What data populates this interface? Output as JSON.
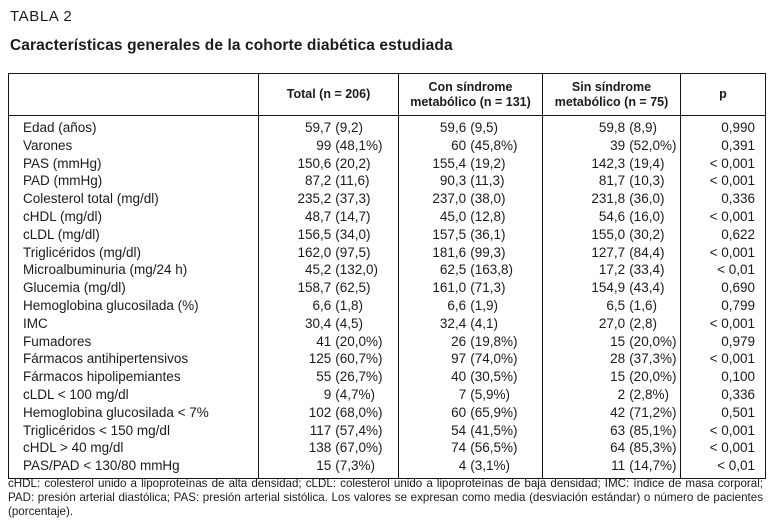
{
  "colors": {
    "text": "#1b1b1b",
    "border": "#141414",
    "background": "#ffffff"
  },
  "header": {
    "table_label": "TABLA 2",
    "title": "Características generales de la cohorte diabética estudiada"
  },
  "table": {
    "column_headers": [
      "",
      "Total (n = 206)",
      "Con síndrome\nmetabólico (n = 131)",
      "Sin síndrome\nmetabólico (n = 75)",
      "p"
    ],
    "rows": [
      {
        "label": "Edad (años)",
        "total": "59,7 (9,2)",
        "with_ms": "59,6 (9,5)",
        "without_ms": "59,8 (8,9)",
        "p": "0,990"
      },
      {
        "label": "Varones",
        "total": "99 (48,1%)",
        "with_ms": "60 (45,8%)",
        "without_ms": "39 (52,0%)",
        "p": "0,391"
      },
      {
        "label": "PAS (mmHg)",
        "total": "150,6 (20,2)",
        "with_ms": "155,4 (19,2)",
        "without_ms": "142,3 (19,4)",
        "p": "< 0,001"
      },
      {
        "label": "PAD (mmHg)",
        "total": "87,2 (11,6)",
        "with_ms": "90,3 (11,3)",
        "without_ms": "81,7 (10,3)",
        "p": "< 0,001"
      },
      {
        "label": "Colesterol total (mg/dl)",
        "total": "235,2 (37,3)",
        "with_ms": "237,0 (38,0)",
        "without_ms": "231,8 (36,0)",
        "p": "0,336"
      },
      {
        "label": "cHDL (mg/dl)",
        "total": "48,7 (14,7)",
        "with_ms": "45,0 (12,8)",
        "without_ms": "54,6 (16,0)",
        "p": "< 0,001"
      },
      {
        "label": "cLDL (mg/dl)",
        "total": "156,5 (34,0)",
        "with_ms": "157,5 (36,1)",
        "without_ms": "155,0 (30,2)",
        "p": "0,622"
      },
      {
        "label": "Triglicéridos (mg/dl)",
        "total": "162,0 (97,5)",
        "with_ms": "181,6 (99,3)",
        "without_ms": "127,7 (84,4)",
        "p": "< 0,001"
      },
      {
        "label": "Microalbuminuria (mg/24 h)",
        "total": "45,2 (132,0)",
        "with_ms": "62,5 (163,8)",
        "without_ms": "17,2 (33,4)",
        "p": "< 0,01"
      },
      {
        "label": "Glucemia (mg/dl)",
        "total": "158,7 (62,5)",
        "with_ms": "161,0 (71,3)",
        "without_ms": "154,9 (43,4)",
        "p": "0,690"
      },
      {
        "label": "Hemoglobina glucosilada (%)",
        "total": "6,6 (1,8)",
        "with_ms": "6,6 (1,9)",
        "without_ms": "6,5 (1,6)",
        "p": "0,799"
      },
      {
        "label": "IMC",
        "total": "30,4 (4,5)",
        "with_ms": "32,4 (4,1)",
        "without_ms": "27,0 (2,8)",
        "p": "< 0,001"
      },
      {
        "label": "Fumadores",
        "total": "41 (20,0%)",
        "with_ms": "26 (19,8%)",
        "without_ms": "15 (20,0%)",
        "p": "0,979"
      },
      {
        "label": "Fármacos antihipertensivos",
        "total": "125 (60,7%)",
        "with_ms": "97 (74,0%)",
        "without_ms": "28 (37,3%)",
        "p": "< 0,001"
      },
      {
        "label": "Fármacos hipolipemiantes",
        "total": "55 (26,7%)",
        "with_ms": "40 (30,5%)",
        "without_ms": "15 (20,0%)",
        "p": "0,100"
      },
      {
        "label": "cLDL < 100 mg/dl",
        "total": "9 (4,7%)",
        "with_ms": "7 (5,9%)",
        "without_ms": "2 (2,8%)",
        "p": "0,336"
      },
      {
        "label": "Hemoglobina glucosilada < 7%",
        "total": "102 (68,0%)",
        "with_ms": "60 (65,9%)",
        "without_ms": "42 (71,2%)",
        "p": "0,501"
      },
      {
        "label": "Triglicéridos < 150 mg/dl",
        "total": "117 (57,4%)",
        "with_ms": "54 (41,5%)",
        "without_ms": "63 (85,1%)",
        "p": "< 0,001"
      },
      {
        "label": "cHDL > 40 mg/dl",
        "total": "138 (67,0%)",
        "with_ms": "74 (56,5%)",
        "without_ms": "64 (85,3%)",
        "p": "< 0,001"
      },
      {
        "label": "PAS/PAD < 130/80 mmHg",
        "total": "15 (7,3%)",
        "with_ms": "4 (3,1%)",
        "without_ms": "11 (14,7%)",
        "p": "< 0,01"
      }
    ]
  },
  "footnote": "cHDL: colesterol unido a lipoproteínas de alta densidad; cLDL: colesterol unido a lipoproteínas de baja densidad; IMC: índice de masa corporal; PAD: presión arterial diastólica; PAS: presión arterial sistólica. Los valores se expresan como media (desviación estándar) o número de pacientes (porcentaje)."
}
